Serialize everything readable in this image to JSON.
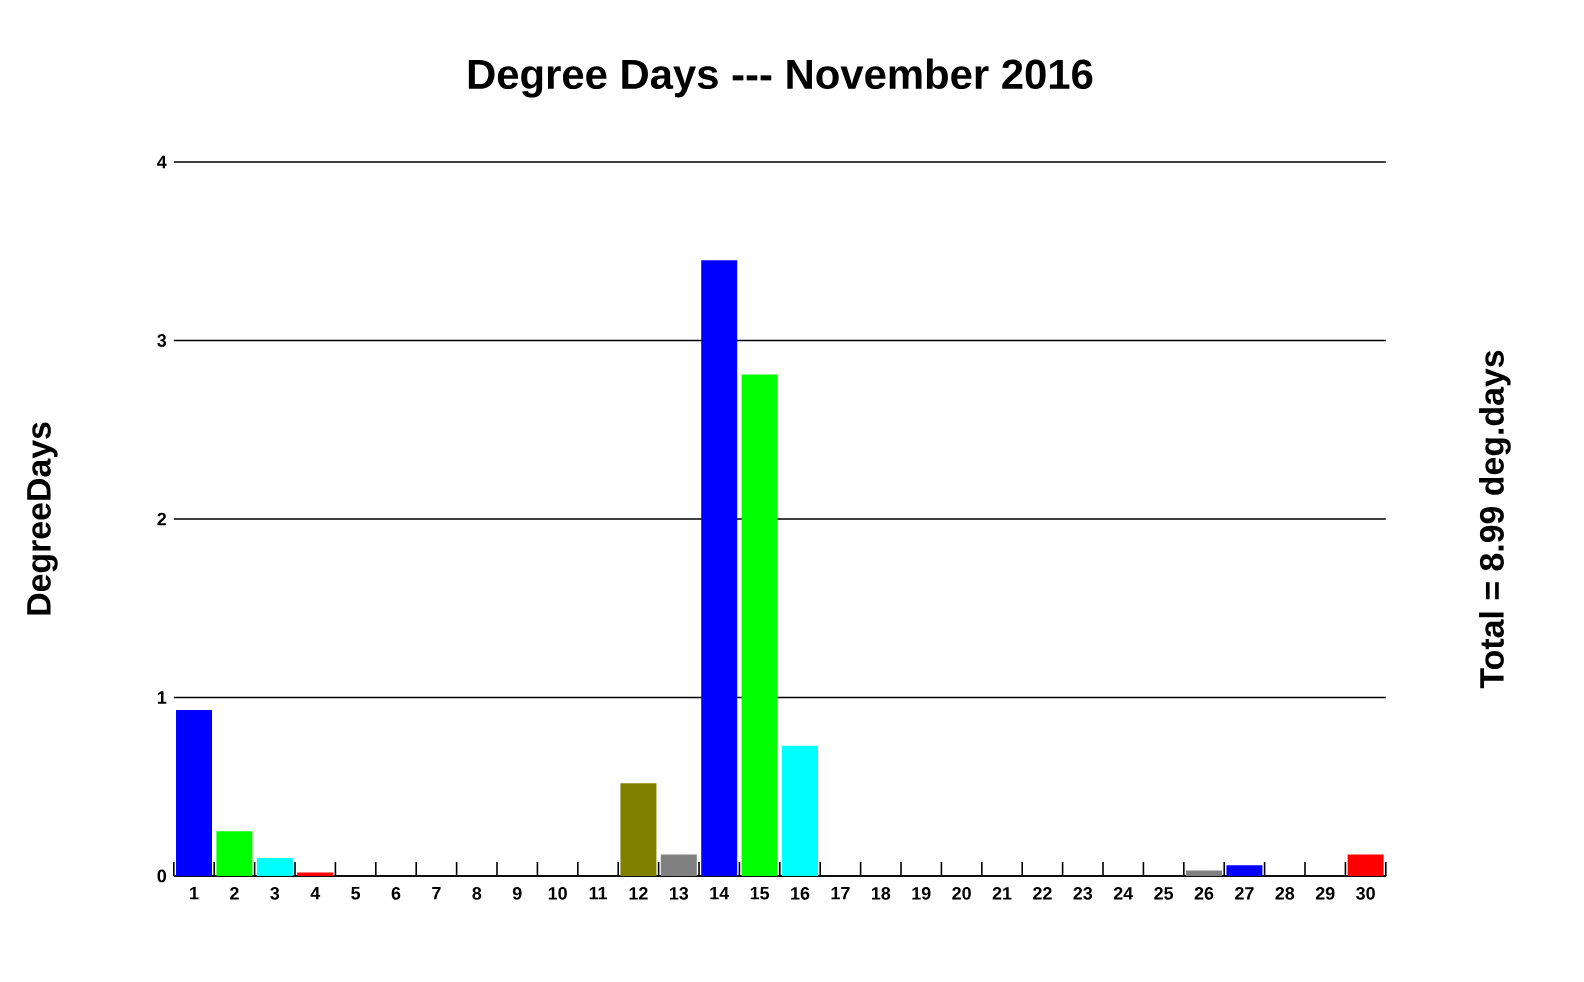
{
  "chart_data": {
    "type": "bar",
    "title": "Degree Days --- November 2016",
    "ylabel": "DegreeDays",
    "annotations": [
      "Total = 8.99 deg.days"
    ],
    "categories": [
      "1",
      "2",
      "3",
      "4",
      "5",
      "6",
      "7",
      "8",
      "9",
      "10",
      "11",
      "12",
      "13",
      "14",
      "15",
      "16",
      "17",
      "18",
      "19",
      "20",
      "21",
      "22",
      "23",
      "24",
      "25",
      "26",
      "27",
      "28",
      "29",
      "30"
    ],
    "values": [
      0.93,
      0.25,
      0.1,
      0.02,
      0,
      0,
      0,
      0,
      0,
      0,
      0,
      0.52,
      0.12,
      3.45,
      2.81,
      0.73,
      0,
      0,
      0,
      0,
      0,
      0,
      0,
      0,
      0,
      0.03,
      0.06,
      0,
      0,
      0.12
    ],
    "colors": [
      "#0000ff",
      "#00ff00",
      "#00ffff",
      "#ff0000",
      "#ff00ff",
      "#ffff00",
      "#000080",
      "#008000",
      "#008080",
      "#800000",
      "#800080",
      "#808000",
      "#808080",
      "#0000ff",
      "#00ff00",
      "#00ffff",
      "#ff0000",
      "#ff00ff",
      "#ffff00",
      "#000080",
      "#008000",
      "#008080",
      "#800000",
      "#800080",
      "#808000",
      "#808080",
      "#0000ff",
      "#00ff00",
      "#00ffff",
      "#ff0000"
    ],
    "ylim": [
      0,
      4
    ],
    "yticks": [
      0,
      1,
      2,
      3,
      4
    ],
    "grid": "y"
  }
}
